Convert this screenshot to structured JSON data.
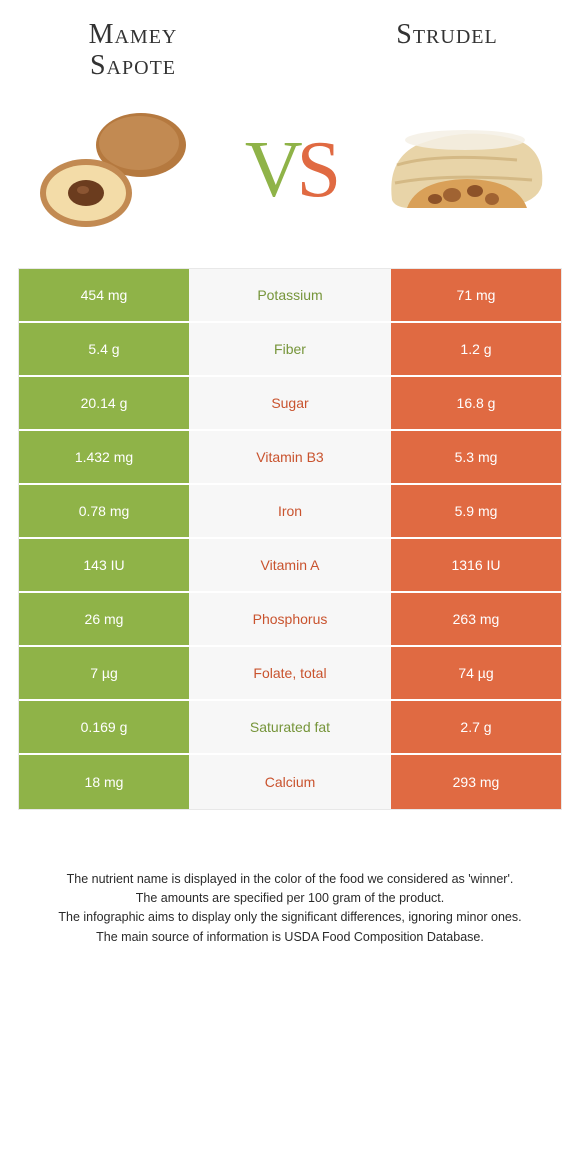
{
  "titleLeft": "Mamey Sapote",
  "titleRight": "Strudel",
  "vsV": "V",
  "vsS": "S",
  "colors": {
    "green": "#8fb348",
    "orange": "#e06a42",
    "midGreen": "#76953a",
    "midOrange": "#c9532e",
    "rowBg": "#f7f7f7"
  },
  "rows": [
    {
      "left": "454 mg",
      "label": "Potassium",
      "winner": "green",
      "right": "71 mg"
    },
    {
      "left": "5.4 g",
      "label": "Fiber",
      "winner": "green",
      "right": "1.2 g"
    },
    {
      "left": "20.14 g",
      "label": "Sugar",
      "winner": "orange",
      "right": "16.8 g"
    },
    {
      "left": "1.432 mg",
      "label": "Vitamin B3",
      "winner": "orange",
      "right": "5.3 mg"
    },
    {
      "left": "0.78 mg",
      "label": "Iron",
      "winner": "orange",
      "right": "5.9 mg"
    },
    {
      "left": "143 IU",
      "label": "Vitamin A",
      "winner": "orange",
      "right": "1316 IU"
    },
    {
      "left": "26 mg",
      "label": "Phosphorus",
      "winner": "orange",
      "right": "263 mg"
    },
    {
      "left": "7 µg",
      "label": "Folate, total",
      "winner": "orange",
      "right": "74 µg"
    },
    {
      "left": "0.169 g",
      "label": "Saturated fat",
      "winner": "green",
      "right": "2.7 g"
    },
    {
      "left": "18 mg",
      "label": "Calcium",
      "winner": "orange",
      "right": "293 mg"
    }
  ],
  "footer": [
    "The nutrient name is displayed in the color of the food we considered as 'winner'.",
    "The amounts are specified per 100 gram of the product.",
    "The infographic aims to display only the significant differences, ignoring minor ones.",
    "The main source of information is USDA Food Composition Database."
  ]
}
